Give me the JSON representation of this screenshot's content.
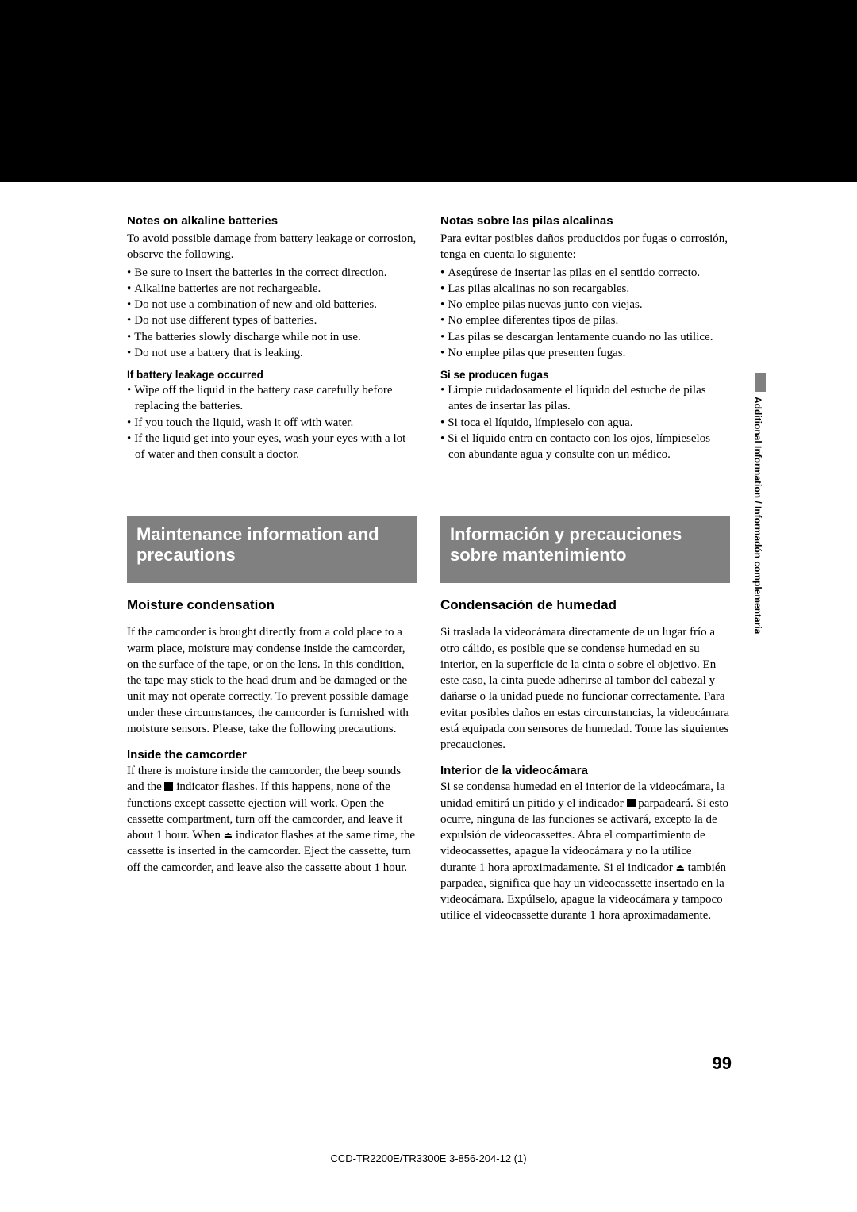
{
  "left": {
    "h1": "Notes on alkaline batteries",
    "intro": "To avoid possible damage from battery leakage or corrosion, observe the following.",
    "bullets": [
      "Be sure to insert the batteries in the correct direction.",
      "Alkaline batteries are not rechargeable.",
      "Do not use a combination of new and old batteries.",
      "Do not use different types of batteries.",
      "The batteries slowly discharge while not in use.",
      "Do not use a battery that is leaking."
    ],
    "h2": "If battery leakage occurred",
    "bullets2": [
      "Wipe off the liquid in the battery case carefully before replacing the batteries.",
      "If you touch the liquid, wash it off with water.",
      "If the liquid get into your eyes, wash your eyes with a lot of water and then consult a doctor."
    ]
  },
  "right": {
    "h1": "Notas sobre las pilas alcalinas",
    "intro": "Para evitar posibles daños producidos por fugas o corrosión, tenga en cuenta lo siguiente:",
    "bullets": [
      "Asegúrese de insertar las pilas en el sentido correcto.",
      "Las pilas alcalinas no son recargables.",
      "No emplee pilas nuevas junto con viejas.",
      "No emplee diferentes tipos de pilas.",
      "Las pilas se descargan lentamente cuando no las utilice.",
      "No emplee pilas que presenten fugas."
    ],
    "h2": "Si se producen fugas",
    "bullets2": [
      "Limpie cuidadosamente el líquido del estuche de pilas antes de insertar las pilas.",
      "Si toca el líquido, límpieselo con agua.",
      "Si el líquido entra en contacto con los ojos, límpieselos con abundante agua y consulte con un médico."
    ]
  },
  "sec2": {
    "left": {
      "banner": "Maintenance information and precautions",
      "head": "Moisture condensation",
      "p1": "If the camcorder is brought directly from a cold place to a warm place, moisture may condense inside the camcorder, on the surface of the tape, or on the lens. In this condition, the tape may stick to the head drum and be damaged or the unit may not operate correctly. To prevent possible damage under these circumstances, the camcorder is furnished with moisture sensors. Please, take the following precautions.",
      "sub": "Inside the camcorder",
      "p2a": "If there is moisture inside the camcorder, the beep sounds and the ",
      "p2b": " indicator flashes. If this happens, none of the functions except cassette ejection will work. Open the cassette compartment, turn off the camcorder, and leave it about 1 hour. When ",
      "p2c": " indicator flashes at the same time, the cassette is inserted in the camcorder. Eject the cassette, turn off the camcorder, and leave also the cassette about 1 hour."
    },
    "right": {
      "banner": "Información y precauciones sobre mantenimiento",
      "head": "Condensación de humedad",
      "p1": "Si traslada la videocámara directamente de un lugar frío a otro cálido, es posible que se condense humedad en su interior, en la superficie de la cinta o sobre el objetivo. En este caso, la cinta puede adherirse al tambor del cabezal y dañarse o la unidad puede no funcionar correctamente. Para evitar posibles daños en estas circunstancias, la videocámara está equipada con sensores de humedad. Tome las siguientes precauciones.",
      "sub": "Interior de la videocámara",
      "p2a": "Si se condensa humedad en el interior de la videocámara, la unidad emitirá un pitido y el indicador ",
      "p2b": " parpadeará. Si esto ocurre, ninguna de las funciones se activará, excepto la de expulsión de videocassettes. Abra el compartimiento de videocassettes, apague la videocámara y no la utilice durante 1 hora aproximadamente. Si el indicador ",
      "p2c": " también parpadea, significa que hay un videocassette insertado en la videocámara. Expúlselo, apague la videocámara y tampoco utilice el videocassette durante 1 hora aproximadamente."
    }
  },
  "sideText": "Additional Information / Informadón complementaria",
  "pageNum": "99",
  "footer": "CCD-TR2200E/TR3300E    3-856-204-12 (1)"
}
